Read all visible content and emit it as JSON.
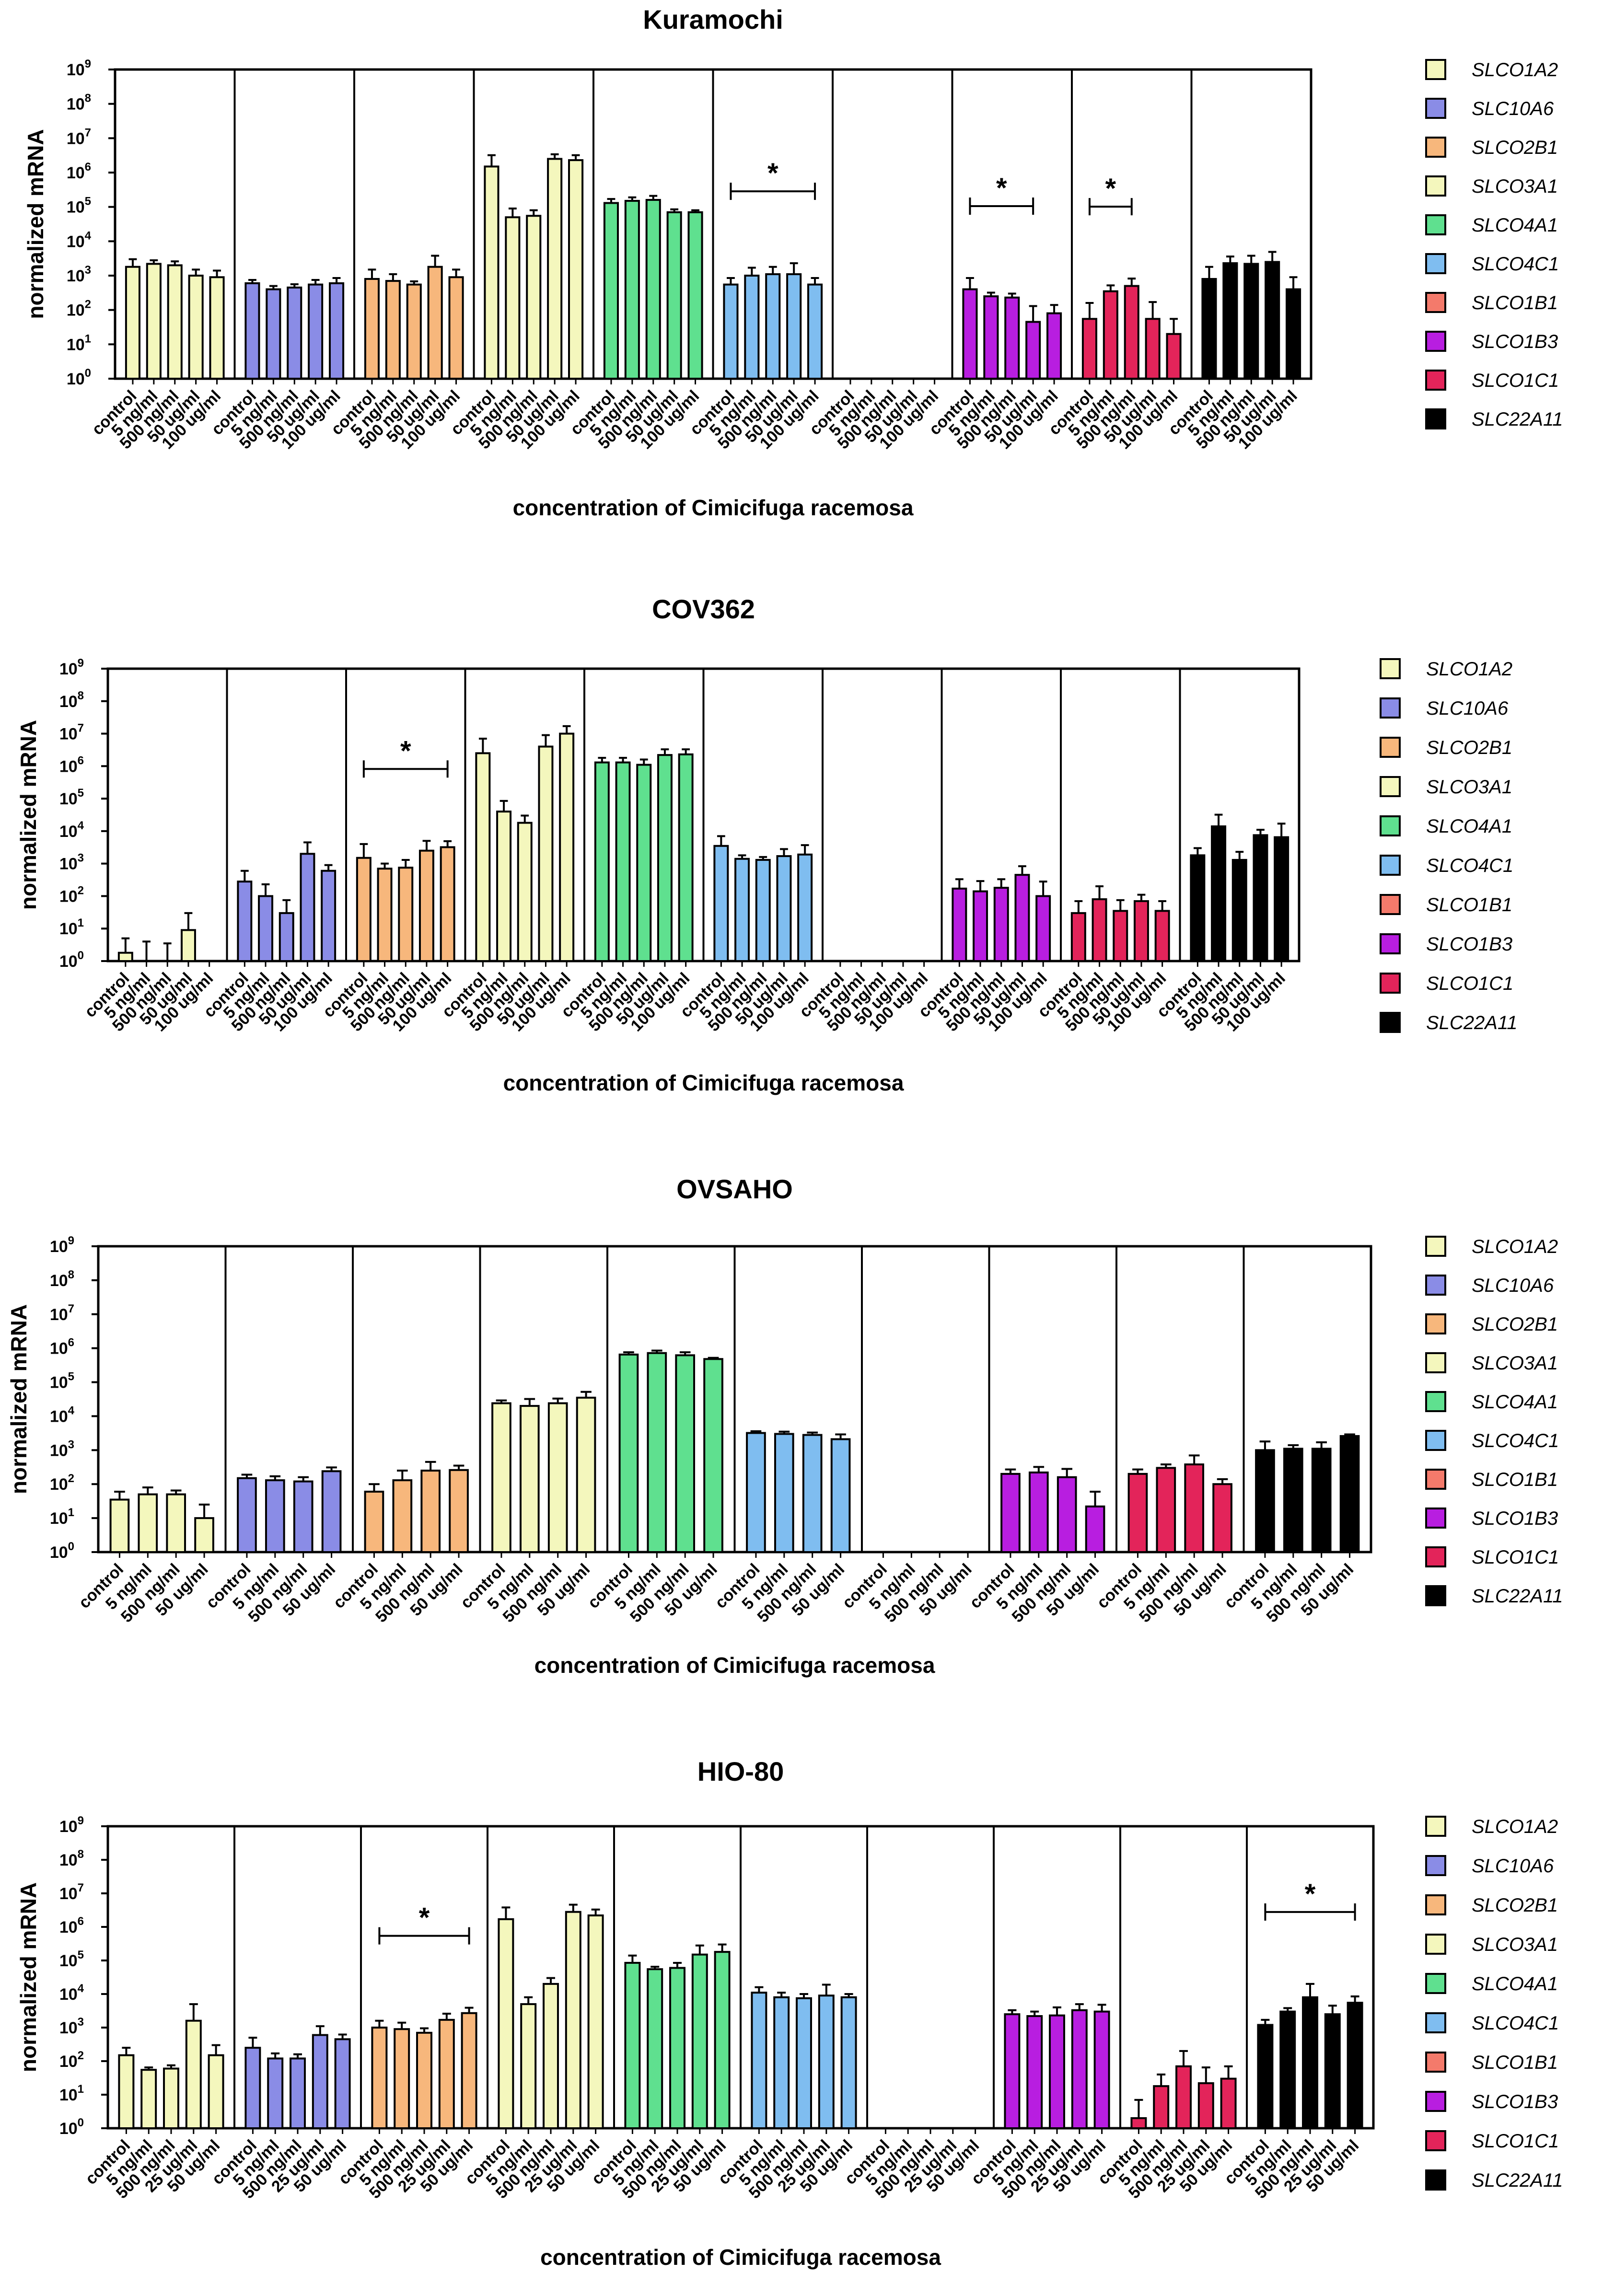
{
  "colors": {
    "SLCO1A2": "#f4f7bd",
    "SLC10A6": "#8a8ce6",
    "SLCO2B1": "#f7b77c",
    "SLCO3A1": "#f4f7bd",
    "SLCO4A1": "#5fe08f",
    "SLCO4C1": "#7fbdf0",
    "SLCO1B1": "#f47a6b",
    "SLCO1B3": "#b81ee0",
    "SLCO1C1": "#e3245a",
    "SLC22A11": "#000000"
  },
  "chart_data": [
    {
      "type": "bar",
      "title": "Kuramochi",
      "xlabel": "concentration of Cimicifuga racemosa",
      "ylabel": "normalized mRNA",
      "yscale": "log",
      "ylim": [
        1,
        1000000000
      ],
      "ytick_labels": [
        "10",
        "10",
        "10",
        "10",
        "10",
        "10",
        "10",
        "10",
        "10",
        "10"
      ],
      "ytick_exponents": [
        "0",
        "1",
        "2",
        "3",
        "4",
        "5",
        "6",
        "7",
        "8",
        "9"
      ],
      "legend": [
        "SLCO1A2",
        "SLC10A6",
        "SLCO2B1",
        "SLCO3A1",
        "SLCO4A1",
        "SLCO4C1",
        "SLCO1B1",
        "SLCO1B3",
        "SLCO1C1",
        "SLC22A11"
      ],
      "categories": [
        "control",
        "5 ng/ml",
        "500 ng/ml",
        "50 ug/ml",
        "100 ug/ml"
      ],
      "series": [
        {
          "name": "SLCO1A2",
          "values": [
            1800,
            2200,
            2000,
            1000,
            900
          ],
          "errors": [
            3000,
            2800,
            2600,
            1500,
            1400
          ]
        },
        {
          "name": "SLC10A6",
          "values": [
            600,
            400,
            450,
            550,
            600
          ],
          "errors": [
            750,
            500,
            560,
            750,
            850
          ]
        },
        {
          "name": "SLCO2B1",
          "values": [
            800,
            700,
            550,
            1800,
            900
          ],
          "errors": [
            1500,
            1100,
            680,
            3800,
            1500
          ]
        },
        {
          "name": "SLCO3A1",
          "values": [
            1500000,
            50000,
            55000,
            2500000,
            2300000
          ],
          "errors": [
            3200000,
            90000,
            80000,
            3400000,
            3200000
          ]
        },
        {
          "name": "SLCO4A1",
          "values": [
            130000,
            150000,
            160000,
            70000,
            70000
          ],
          "errors": [
            170000,
            190000,
            210000,
            85000,
            80000
          ]
        },
        {
          "name": "SLCO4C1",
          "values": [
            550,
            1000,
            1100,
            1100,
            550
          ],
          "errors": [
            850,
            1700,
            1800,
            2300,
            850
          ]
        },
        {
          "name": "SLCO1B1",
          "values": [
            null,
            null,
            null,
            null,
            null
          ],
          "errors": [
            null,
            null,
            null,
            null,
            null
          ]
        },
        {
          "name": "SLCO1B3",
          "values": [
            400,
            250,
            230,
            45,
            80
          ],
          "errors": [
            850,
            320,
            300,
            130,
            140
          ]
        },
        {
          "name": "SLCO1C1",
          "values": [
            55,
            350,
            500,
            55,
            20
          ],
          "errors": [
            160,
            520,
            820,
            170,
            55
          ]
        },
        {
          "name": "SLC22A11",
          "values": [
            800,
            2300,
            2200,
            2500,
            400
          ],
          "errors": [
            1800,
            3600,
            3800,
            4900,
            900
          ]
        }
      ],
      "significance": [
        {
          "series": "SLCO4C1",
          "from": 0,
          "to": 4,
          "label": "*"
        },
        {
          "series": "SLCO1B3",
          "from": 0,
          "to": 3,
          "label": "*"
        },
        {
          "series": "SLCO1C1",
          "from": 0,
          "to": 2,
          "label": "*"
        }
      ]
    },
    {
      "type": "bar",
      "title": "COV362",
      "xlabel": "concentration of Cimicifuga racemosa",
      "ylabel": "normalized mRNA",
      "yscale": "log",
      "ylim": [
        1,
        1000000000
      ],
      "ytick_labels": [
        "10",
        "10",
        "10",
        "10",
        "10",
        "10",
        "10",
        "10",
        "10",
        "10"
      ],
      "ytick_exponents": [
        "0",
        "1",
        "2",
        "3",
        "4",
        "5",
        "6",
        "7",
        "8",
        "9"
      ],
      "legend": [
        "SLCO1A2",
        "SLC10A6",
        "SLCO2B1",
        "SLCO3A1",
        "SLCO4A1",
        "SLCO4C1",
        "SLCO1B1",
        "SLCO1B3",
        "SLCO1C1",
        "SLC22A11"
      ],
      "categories": [
        "control",
        "5 ng/ml",
        "500 ng/ml",
        "50 ug/ml",
        "100 ug/ml"
      ],
      "series": [
        {
          "name": "SLCO1A2",
          "values": [
            1.8,
            1,
            1,
            9,
            null
          ],
          "errors": [
            5,
            4,
            3.5,
            30,
            null
          ]
        },
        {
          "name": "SLC10A6",
          "values": [
            280,
            100,
            30,
            2000,
            600
          ],
          "errors": [
            600,
            230,
            75,
            4500,
            900
          ]
        },
        {
          "name": "SLCO2B1",
          "values": [
            1500,
            700,
            750,
            2500,
            3200
          ],
          "errors": [
            4000,
            1000,
            1300,
            5000,
            4900
          ]
        },
        {
          "name": "SLCO3A1",
          "values": [
            2500000,
            40000,
            18000,
            4000000,
            10000000
          ],
          "errors": [
            7000000,
            85000,
            30000,
            9000000,
            17000000
          ]
        },
        {
          "name": "SLCO4A1",
          "values": [
            1300000,
            1300000,
            1100000,
            2200000,
            2300000
          ],
          "errors": [
            1800000,
            1800000,
            1600000,
            3300000,
            3300000
          ]
        },
        {
          "name": "SLCO4C1",
          "values": [
            3500,
            1400,
            1300,
            1700,
            1900
          ],
          "errors": [
            7000,
            1800,
            1600,
            2800,
            3700
          ]
        },
        {
          "name": "SLCO1B1",
          "values": [
            null,
            null,
            null,
            null,
            null
          ],
          "errors": [
            null,
            null,
            null,
            null,
            null
          ]
        },
        {
          "name": "SLCO1B3",
          "values": [
            170,
            140,
            180,
            450,
            100
          ],
          "errors": [
            330,
            290,
            330,
            830,
            280
          ]
        },
        {
          "name": "SLCO1C1",
          "values": [
            30,
            80,
            35,
            70,
            35
          ],
          "errors": [
            70,
            200,
            75,
            110,
            70
          ]
        },
        {
          "name": "SLC22A11",
          "values": [
            1800,
            14000,
            1300,
            7500,
            6500
          ],
          "errors": [
            3000,
            32000,
            2300,
            11000,
            17000
          ]
        }
      ],
      "significance": [
        {
          "series": "SLCO2B1",
          "from": 0,
          "to": 4,
          "label": "*"
        }
      ]
    },
    {
      "type": "bar",
      "title": "OVSAHO",
      "xlabel": "concentration of Cimicifuga racemosa",
      "ylabel": "normalized mRNA",
      "yscale": "log",
      "ylim": [
        1,
        1000000000
      ],
      "ytick_labels": [
        "10",
        "10",
        "10",
        "10",
        "10",
        "10",
        "10",
        "10",
        "10",
        "10"
      ],
      "ytick_exponents": [
        "0",
        "1",
        "2",
        "3",
        "4",
        "5",
        "6",
        "7",
        "8",
        "9"
      ],
      "legend": [
        "SLCO1A2",
        "SLC10A6",
        "SLCO2B1",
        "SLCO3A1",
        "SLCO4A1",
        "SLCO4C1",
        "SLCO1B1",
        "SLCO1B3",
        "SLCO1C1",
        "SLC22A11"
      ],
      "categories": [
        "control",
        "5 ng/ml",
        "500 ng/ml",
        "50 ug/ml"
      ],
      "series": [
        {
          "name": "SLCO1A2",
          "values": [
            35,
            50,
            50,
            10
          ],
          "errors": [
            60,
            80,
            65,
            25
          ]
        },
        {
          "name": "SLC10A6",
          "values": [
            150,
            130,
            120,
            240
          ],
          "errors": [
            190,
            170,
            160,
            310
          ]
        },
        {
          "name": "SLCO2B1",
          "values": [
            60,
            130,
            250,
            260
          ],
          "errors": [
            100,
            250,
            450,
            350
          ]
        },
        {
          "name": "SLCO3A1",
          "values": [
            24000,
            20000,
            24000,
            35000
          ],
          "errors": [
            29000,
            32000,
            33000,
            52000
          ]
        },
        {
          "name": "SLCO4A1",
          "values": [
            650000,
            720000,
            620000,
            480000
          ],
          "errors": [
            760000,
            850000,
            760000,
            520000
          ]
        },
        {
          "name": "SLCO4C1",
          "values": [
            3200,
            3000,
            2800,
            2100
          ],
          "errors": [
            3600,
            3500,
            3300,
            2900
          ]
        },
        {
          "name": "SLCO1B1",
          "values": [
            null,
            null,
            null,
            null
          ],
          "errors": [
            null,
            null,
            null,
            null
          ]
        },
        {
          "name": "SLCO1B3",
          "values": [
            200,
            220,
            160,
            22
          ],
          "errors": [
            270,
            320,
            280,
            60
          ]
        },
        {
          "name": "SLCO1C1",
          "values": [
            200,
            300,
            380,
            100
          ],
          "errors": [
            270,
            380,
            700,
            140
          ]
        },
        {
          "name": "SLC22A11",
          "values": [
            1000,
            1100,
            1100,
            2600
          ],
          "errors": [
            1800,
            1400,
            1700,
            2900
          ]
        }
      ],
      "significance": []
    },
    {
      "type": "bar",
      "title": "HIO-80",
      "xlabel": "concentration of Cimicifuga racemosa",
      "ylabel": "normalized mRNA",
      "yscale": "log",
      "ylim": [
        1,
        1000000000
      ],
      "ytick_labels": [
        "10",
        "10",
        "10",
        "10",
        "10",
        "10",
        "10",
        "10",
        "10",
        "10"
      ],
      "ytick_exponents": [
        "0",
        "1",
        "2",
        "3",
        "4",
        "5",
        "6",
        "7",
        "8",
        "9"
      ],
      "legend": [
        "SLCO1A2",
        "SLC10A6",
        "SLCO2B1",
        "SLCO3A1",
        "SLCO4A1",
        "SLCO4C1",
        "SLCO1B1",
        "SLCO1B3",
        "SLCO1C1",
        "SLC22A11"
      ],
      "categories": [
        "control",
        "5 ng/ml",
        "500 ng/ml",
        "25 ug/ml",
        "50 ug/ml"
      ],
      "series": [
        {
          "name": "SLCO1A2",
          "values": [
            150,
            55,
            60,
            1600,
            150
          ],
          "errors": [
            250,
            65,
            75,
            5000,
            300
          ]
        },
        {
          "name": "SLC10A6",
          "values": [
            250,
            120,
            120,
            600,
            450
          ],
          "errors": [
            500,
            170,
            160,
            1100,
            620
          ]
        },
        {
          "name": "SLCO2B1",
          "values": [
            1000,
            900,
            700,
            1700,
            2700
          ],
          "errors": [
            1600,
            1400,
            950,
            2600,
            3900
          ]
        },
        {
          "name": "SLCO3A1",
          "values": [
            1700000,
            5000,
            20000,
            2800000,
            2200000
          ],
          "errors": [
            3800000,
            8000,
            30000,
            4600000,
            3300000
          ]
        },
        {
          "name": "SLCO4A1",
          "values": [
            85000,
            55000,
            60000,
            150000,
            180000
          ],
          "errors": [
            140000,
            65000,
            85000,
            280000,
            300000
          ]
        },
        {
          "name": "SLCO4C1",
          "values": [
            11000,
            8000,
            7500,
            9000,
            8000
          ],
          "errors": [
            16000,
            11000,
            10000,
            19000,
            10000
          ]
        },
        {
          "name": "SLCO1B1",
          "values": [
            null,
            null,
            null,
            null,
            null
          ],
          "errors": [
            null,
            null,
            null,
            null,
            null
          ]
        },
        {
          "name": "SLCO1B3",
          "values": [
            2500,
            2200,
            2300,
            3300,
            3000
          ],
          "errors": [
            3300,
            3000,
            4000,
            5000,
            4800
          ]
        },
        {
          "name": "SLCO1C1",
          "values": [
            2,
            18,
            70,
            22,
            30
          ],
          "errors": [
            7,
            40,
            200,
            65,
            70
          ]
        },
        {
          "name": "SLC22A11",
          "values": [
            1200,
            3000,
            8000,
            2500,
            5500
          ],
          "errors": [
            1700,
            3800,
            20000,
            4500,
            8500
          ]
        }
      ],
      "significance": [
        {
          "series": "SLCO2B1",
          "from": 0,
          "to": 4,
          "label": "*"
        },
        {
          "series": "SLC22A11",
          "from": 0,
          "to": 4,
          "label": "*"
        }
      ]
    }
  ]
}
